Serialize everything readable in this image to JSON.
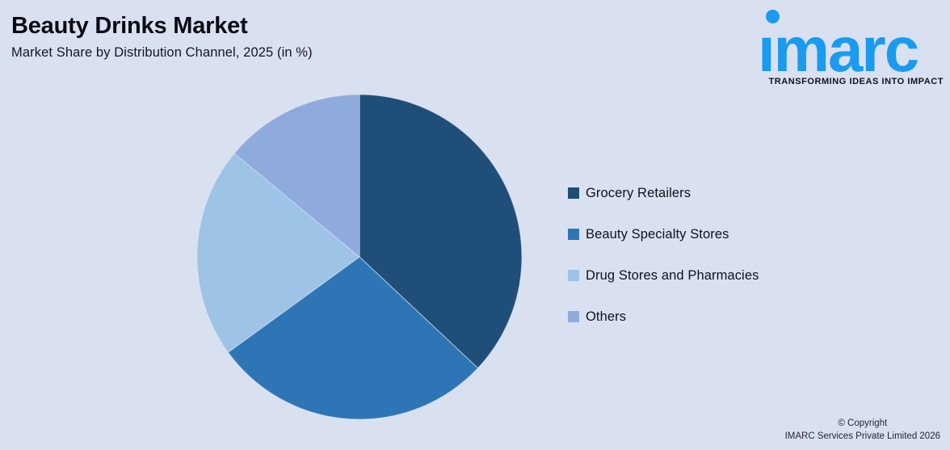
{
  "header": {
    "title": "Beauty Drinks Market",
    "subtitle": "Market Share by Distribution Channel, 2025 (in %)"
  },
  "logo": {
    "wordmark": "ımarc",
    "tagline": "TRANSFORMING IDEAS INTO IMPACT",
    "brand_color": "#1A9BF0"
  },
  "footer": {
    "copyright_line1": "© Copyright",
    "copyright_line2": "IMARC Services Private Limited 2026"
  },
  "colors": {
    "background": "#D9E1F1",
    "title_text": "#0B0B14",
    "legend_text": "#121218"
  },
  "chart_data": {
    "type": "pie",
    "title": "Beauty Drinks Market",
    "subtitle": "Market Share by Distribution Channel, 2025 (in %)",
    "unit": "%",
    "start_angle_deg": 0,
    "direction": "clockwise",
    "legend_position": "right",
    "data_labels_shown": false,
    "segments": [
      {
        "label": "Grocery Retailers",
        "value_pct": 37,
        "color": "#1F4E79"
      },
      {
        "label": "Beauty Specialty Stores",
        "value_pct": 28,
        "color": "#2E75B6"
      },
      {
        "label": "Drug Stores and Pharmacies",
        "value_pct": 21,
        "color": "#9DC3E6"
      },
      {
        "label": "Others",
        "value_pct": 14,
        "color": "#8FAADC"
      }
    ]
  }
}
